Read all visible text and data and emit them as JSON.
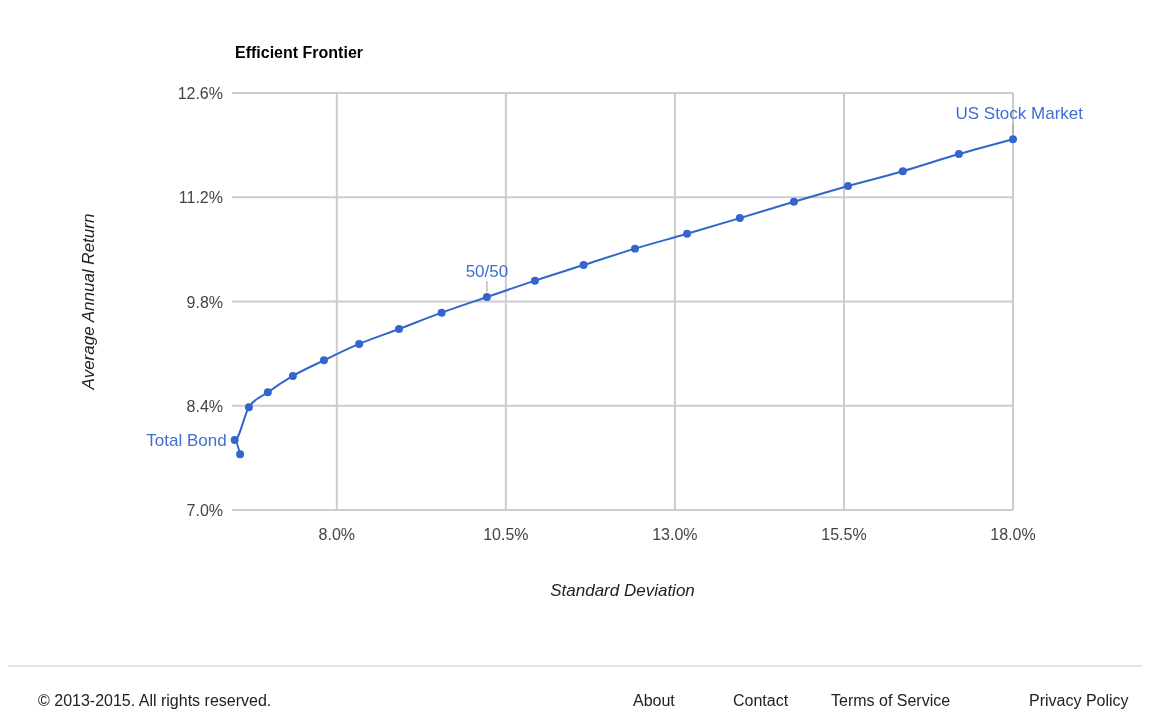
{
  "chart_data": {
    "type": "line",
    "title": "Efficient Frontier",
    "xlabel": "Standard Deviation",
    "ylabel": "Average Annual Return",
    "xlim": [
      6.45,
      18.0
    ],
    "ylim": [
      7.0,
      12.6
    ],
    "xticks": [
      {
        "value": 8,
        "label": "8.0%"
      },
      {
        "value": 10.5,
        "label": "10.5%"
      },
      {
        "value": 13,
        "label": "13.0%"
      },
      {
        "value": 15.5,
        "label": "15.5%"
      },
      {
        "value": 18,
        "label": "18.0%"
      }
    ],
    "yticks": [
      {
        "value": 7,
        "label": "7.0%"
      },
      {
        "value": 8.4,
        "label": "8.4%"
      },
      {
        "value": 9.8,
        "label": "9.8%"
      },
      {
        "value": 11.2,
        "label": "11.2%"
      },
      {
        "value": 12.6,
        "label": "12.6%"
      }
    ],
    "grid": true,
    "marker": "circle",
    "line_style": "solid",
    "series": [
      {
        "color": "#3366cc",
        "x": [
          6.57,
          6.49,
          6.7,
          6.98,
          7.35,
          7.81,
          8.33,
          8.92,
          9.55,
          10.22,
          10.93,
          11.65,
          12.41,
          13.18,
          13.96,
          14.76,
          15.56,
          16.37,
          17.2,
          18.0
        ],
        "values": [
          7.75,
          7.94,
          8.38,
          8.58,
          8.8,
          9.01,
          9.23,
          9.43,
          9.65,
          9.86,
          10.08,
          10.29,
          10.51,
          10.71,
          10.92,
          11.14,
          11.35,
          11.55,
          11.78,
          11.98
        ]
      }
    ],
    "annotations": [
      {
        "text": "Total Bond",
        "x": 6.49,
        "y": 7.94
      },
      {
        "text": "50/50",
        "x": 10.22,
        "y": 9.86
      },
      {
        "text": "US Stock Market",
        "x": 18.0,
        "y": 11.98
      },
      "© 2013-2015. All rights reserved.",
      "About",
      "Contact",
      "Terms of Service",
      "Privacy Policy"
    ]
  }
}
